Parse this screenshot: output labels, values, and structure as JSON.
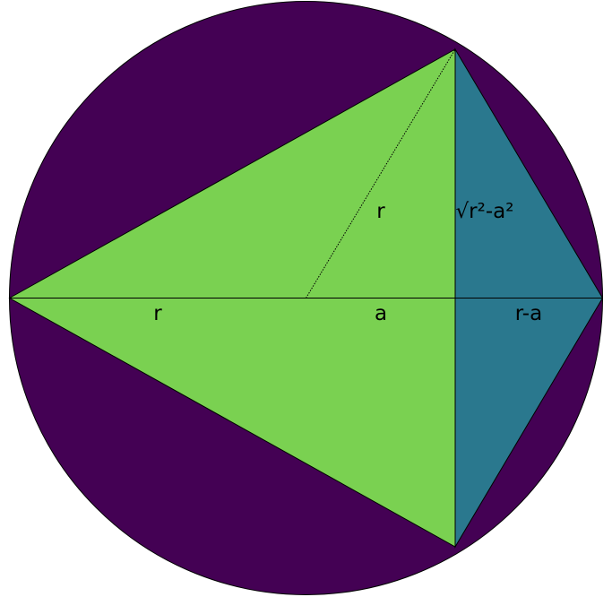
{
  "colors": {
    "background": "#ffffff",
    "circle_fill": "#440154",
    "big_triangle_fill": "#7ad151",
    "small_triangle_fill": "#2a788e",
    "stroke": "#000000"
  },
  "labels": {
    "left_radius": "r",
    "slanted_radius": "r",
    "segment_a": "a",
    "half_chord": "√r²-a²",
    "segment_r_minus_a": "r-a"
  }
}
